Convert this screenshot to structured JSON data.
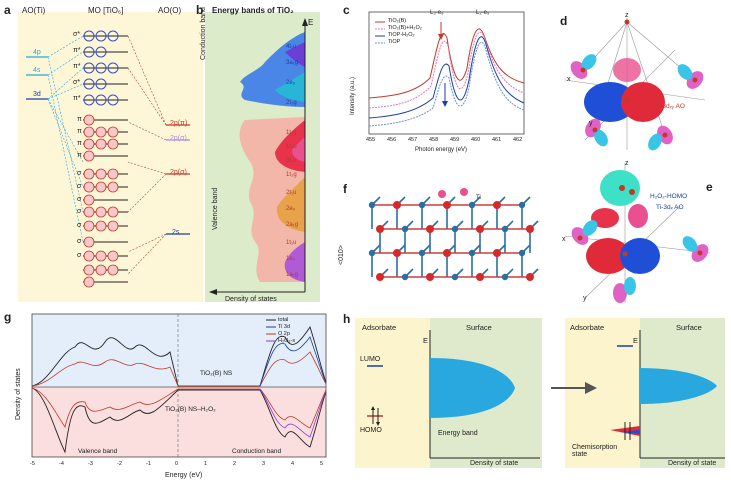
{
  "panels": {
    "a": {
      "label": "a",
      "col_left": "AO(Ti)",
      "col_mid": "MO [TiO₆]",
      "col_right": "AO(O)",
      "ti_levels": [
        "4p",
        "4s",
        "3d"
      ],
      "mo_upper": [
        "σ*",
        "π*",
        "π*",
        "σ*",
        "π*"
      ],
      "o_levels": [
        "2p(π)",
        "2p(σ)",
        "2p(σ)",
        "2s"
      ],
      "lower_sym": [
        "π",
        "π",
        "π",
        "π",
        "σ",
        "σ",
        "σ",
        "σ",
        "σ",
        "σ",
        "σ"
      ]
    },
    "b": {
      "label": "b",
      "title": "Energy bands of TiO₂",
      "axis_e": "E",
      "conduction": "Conduction band",
      "valence": "Valence band",
      "xlabel": "Density of states",
      "band_labels": [
        "4t₁u",
        "3a₁g",
        "2e₉",
        "2t₂g",
        "1t₁g",
        "1t₂u",
        "3t₁u",
        "1t₂g",
        "2t₁u",
        "2e₉",
        "2a₁g",
        "1t₁u",
        "1e₉",
        "1a₁g"
      ]
    },
    "c": {
      "label": "c",
      "xlabel": "Photon energy (eV)",
      "ylabel": "Intensity (a.u.)",
      "peak1": "L₃-e₉",
      "peak2": "L₂-e₉",
      "legend": [
        "TiO₂(B)",
        "TiO₂(B)+H₂O₂",
        "TiOP-H₂O₂",
        "TiOP"
      ],
      "xticks": [
        "455",
        "456",
        "457",
        "458",
        "459",
        "460",
        "461",
        "462"
      ]
    },
    "d": {
      "label": "d",
      "z": "z",
      "x": "x",
      "y": "y",
      "orbital": "Ti-3dₓᵧ AO"
    },
    "e": {
      "label": "e",
      "z": "z",
      "x": "x",
      "y": "y",
      "homo": "H₂O₂-HOMO",
      "orbital": "Ti-3dₓ AO"
    },
    "f": {
      "label": "f",
      "axis": "<010>",
      "atom": "Ti"
    },
    "g": {
      "label": "g",
      "ylabel": "Density of states",
      "xlabel": "Energy (eV)",
      "legend": [
        "total",
        "Ti 3d",
        "O 2p",
        "H₂O₂-s"
      ],
      "top_label": "TiO₂(B) NS",
      "bottom_label": "TiO₂(B) NS–H₂O₂",
      "valence": "Valence band",
      "conduction": "Conduction band",
      "xticks": [
        "-5",
        "-4",
        "-3",
        "-2",
        "-1",
        "0",
        "1",
        "2",
        "3",
        "4",
        "5"
      ]
    },
    "h": {
      "label": "h",
      "left_adsorbate": "Adsorbate",
      "left_surface": "Surface",
      "e": "E",
      "lumo": "LUMO",
      "homo": "HOMO",
      "energy_band": "Energy band",
      "dos": "Density of state",
      "right_adsorbate": "Adsorbate",
      "right_surface": "Surface",
      "right_e": "E",
      "chemisorption": "Chemisorption state",
      "right_dos": "Density of state"
    }
  },
  "colors": {
    "panel_a_bg": "#fdf7d8",
    "panel_b_bg": "#dcebc9",
    "panel_h_bg": "#dfeacd",
    "panel_h_adsorbate_bg": "#fbf4cc"
  }
}
